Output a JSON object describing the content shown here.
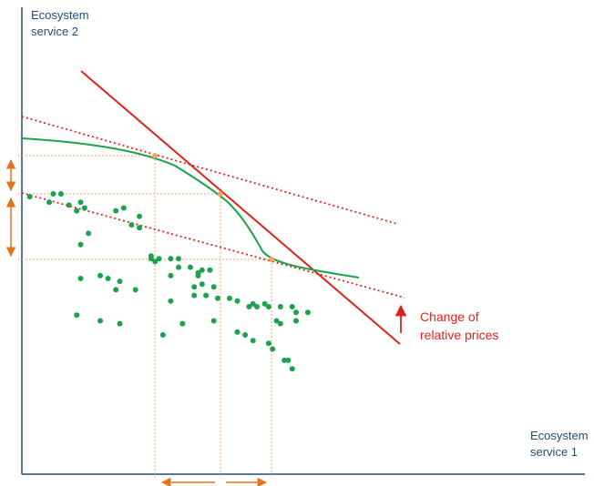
{
  "chart_data": {
    "type": "scatter",
    "title": "",
    "ylabel": "Ecosystem\nservice 2",
    "xlabel": "Ecosystem\nservice 1",
    "annotation": "Change of\nrelative prices",
    "xlim": [
      0,
      100
    ],
    "ylim": [
      0,
      100
    ],
    "grid": false,
    "legend": "none",
    "colors": {
      "axis": "#1f4e79",
      "points": "#1aa34a",
      "frontier": "#1aa34a",
      "price_line": "#e0211c",
      "guides": "#f4a460",
      "arrows": "#e8711c"
    },
    "points": [
      [
        2,
        69
      ],
      [
        7,
        67
      ],
      [
        8,
        70
      ],
      [
        10,
        70
      ],
      [
        12,
        66
      ],
      [
        14,
        64
      ],
      [
        15,
        67
      ],
      [
        16,
        65
      ],
      [
        17,
        56
      ],
      [
        15,
        52
      ],
      [
        15,
        40
      ],
      [
        20,
        41
      ],
      [
        22,
        40
      ],
      [
        24,
        64
      ],
      [
        25,
        39
      ],
      [
        26,
        65
      ],
      [
        24,
        36
      ],
      [
        29,
        36
      ],
      [
        28,
        59
      ],
      [
        30,
        58
      ],
      [
        30,
        62
      ],
      [
        33,
        48
      ],
      [
        34,
        46
      ],
      [
        33,
        47
      ],
      [
        35,
        47
      ],
      [
        38,
        47
      ],
      [
        38,
        41
      ],
      [
        40,
        47
      ],
      [
        40,
        44
      ],
      [
        43,
        44
      ],
      [
        46,
        43
      ],
      [
        48,
        43
      ],
      [
        45,
        42
      ],
      [
        45,
        41
      ],
      [
        44,
        37
      ],
      [
        44,
        34
      ],
      [
        46,
        38
      ],
      [
        47,
        34
      ],
      [
        49,
        37
      ],
      [
        50,
        33
      ],
      [
        53,
        33
      ],
      [
        55,
        32
      ],
      [
        58,
        30
      ],
      [
        59,
        31
      ],
      [
        60,
        30
      ],
      [
        62,
        31
      ],
      [
        63,
        30
      ],
      [
        66,
        30
      ],
      [
        65,
        25
      ],
      [
        66,
        24
      ],
      [
        69,
        30
      ],
      [
        70,
        28
      ],
      [
        70,
        25
      ],
      [
        73,
        28
      ],
      [
        14,
        27
      ],
      [
        20,
        25
      ],
      [
        25,
        24
      ],
      [
        36,
        20
      ],
      [
        38,
        32
      ],
      [
        41,
        24
      ],
      [
        49,
        25
      ],
      [
        55,
        21
      ],
      [
        57,
        20
      ],
      [
        59,
        18
      ],
      [
        63,
        17
      ],
      [
        64,
        15
      ],
      [
        67,
        11
      ],
      [
        68,
        11
      ],
      [
        69,
        8
      ]
    ],
    "frontier": [
      [
        0,
        71
      ],
      [
        12,
        68
      ],
      [
        24,
        63
      ],
      [
        32,
        57
      ],
      [
        38,
        51
      ],
      [
        44,
        44
      ],
      [
        48,
        38
      ],
      [
        52,
        32
      ],
      [
        60,
        30
      ],
      [
        72,
        27
      ],
      [
        80,
        25
      ]
    ],
    "price_line": [
      [
        14,
        79
      ],
      [
        92,
        16
      ]
    ],
    "price_line_tangent_upper": [
      [
        0,
        73
      ],
      [
        90,
        51
      ]
    ],
    "price_line_tangent_lower": [
      [
        0,
        56
      ],
      [
        94,
        33
      ]
    ],
    "tangency_points": [
      [
        32,
        63
      ],
      [
        46,
        55
      ],
      [
        59,
        40
      ]
    ],
    "price_change_arrow": "up"
  }
}
